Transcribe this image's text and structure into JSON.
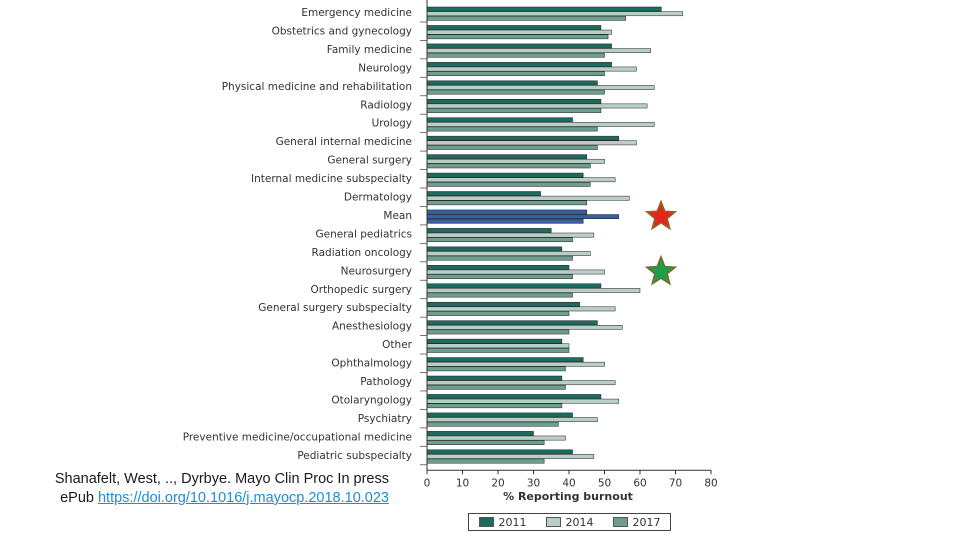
{
  "chart_data": {
    "type": "bar",
    "orientation": "horizontal",
    "title": "",
    "xlabel": "% Reporting burnout",
    "ylabel": "",
    "xlim": [
      0,
      80
    ],
    "xticks": [
      0,
      10,
      20,
      30,
      40,
      50,
      60,
      70,
      80
    ],
    "grid": false,
    "legend_position": "bottom",
    "categories": [
      "Emergency medicine",
      "Obstetrics and gynecology",
      "Family medicine",
      "Neurology",
      "Physical medicine and rehabilitation",
      "Radiology",
      "Urology",
      "General internal medicine",
      "General surgery",
      "Internal medicine subspecialty",
      "Dermatology",
      "Mean",
      "General pediatrics",
      "Radiation oncology",
      "Neurosurgery",
      "Orthopedic surgery",
      "General surgery subspecialty",
      "Anesthesiology",
      "Other",
      "Ophthalmology",
      "Pathology",
      "Otolaryngology",
      "Psychiatry",
      "Preventive medicine/occupational medicine",
      "Pediatric subspecialty"
    ],
    "series": [
      {
        "name": "2011",
        "color": "#1d6b5e",
        "values": [
          66,
          49,
          52,
          52,
          48,
          49,
          41,
          54,
          45,
          44,
          32,
          45,
          35,
          38,
          40,
          49,
          43,
          48,
          38,
          44,
          38,
          49,
          41,
          30,
          41
        ]
      },
      {
        "name": "2014",
        "color": "#b9cfc6",
        "values": [
          72,
          52,
          63,
          59,
          64,
          62,
          64,
          59,
          50,
          53,
          57,
          54,
          47,
          46,
          50,
          60,
          53,
          55,
          40,
          50,
          53,
          54,
          48,
          39,
          47
        ]
      },
      {
        "name": "2017",
        "color": "#6e9e90",
        "values": [
          56,
          51,
          50,
          50,
          50,
          49,
          48,
          48,
          46,
          46,
          45,
          44,
          41,
          41,
          41,
          41,
          40,
          40,
          40,
          39,
          39,
          38,
          37,
          33,
          33
        ]
      }
    ],
    "highlight_category": "Mean",
    "highlight_color": "#3a5f9e",
    "stars": [
      {
        "color": "#e8251b",
        "outline": "#8a6a2a",
        "row": "Mean"
      },
      {
        "color": "#1f9e4a",
        "outline": "#7a6a2a",
        "row": "Neurosurgery"
      }
    ]
  },
  "citation": {
    "line1": "Shanafelt, West, .., Dyrbye. Mayo Clin Proc  In press",
    "line2_prefix": "ePub ",
    "link": "https://doi.org/10.1016/j.mayocp.2018.10.023"
  }
}
